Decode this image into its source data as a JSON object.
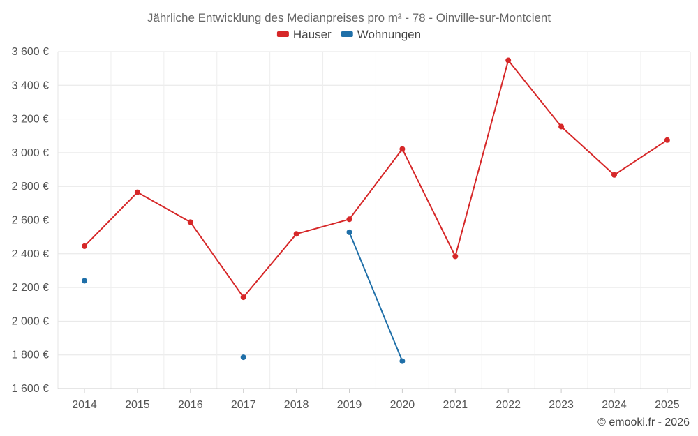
{
  "chart_data": {
    "type": "line",
    "title": "Jährliche Entwicklung des Medianpreises pro m² - 78 - Oinville-sur-Montcient",
    "categories": [
      "2014",
      "2015",
      "2016",
      "2017",
      "2018",
      "2019",
      "2020",
      "2021",
      "2022",
      "2023",
      "2024",
      "2025"
    ],
    "ylim": [
      1600,
      3600
    ],
    "yticks": [
      1600,
      1800,
      2000,
      2200,
      2400,
      2600,
      2800,
      3000,
      3200,
      3400,
      3600
    ],
    "ytick_labels": [
      "1 600 €",
      "1 800 €",
      "2 000 €",
      "2 200 €",
      "2 400 €",
      "2 600 €",
      "2 800 €",
      "3 000 €",
      "3 200 €",
      "3 400 €",
      "3 600 €"
    ],
    "grid": true,
    "legend_position": "top-center",
    "series": [
      {
        "name": "Häuser",
        "color": "#d62728",
        "values": [
          2445,
          2765,
          2588,
          2142,
          2518,
          2605,
          3022,
          2385,
          3548,
          3155,
          2868,
          3075
        ]
      },
      {
        "name": "Wohnungen",
        "color": "#1f6fa8",
        "values": [
          2240,
          null,
          null,
          1786,
          null,
          2528,
          1763,
          null,
          null,
          null,
          null,
          null
        ]
      }
    ],
    "credit": "© emooki.fr - 2026"
  }
}
